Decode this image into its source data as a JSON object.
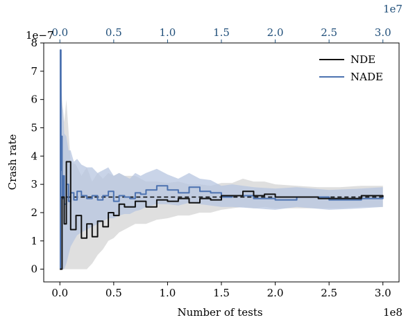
{
  "chart_data": {
    "type": "line",
    "title": "",
    "xlabel": "Number of tests",
    "ylabel": "Crash rate",
    "xlim": [
      -15000000.0,
      315000000.0
    ],
    "ylim": [
      -4.5e-08,
      8e-07
    ],
    "x_offset_label": "1e8",
    "y_offset_label": "1e−7",
    "top_offset_label": "1e7",
    "top_xlim": [
      -1500000.0,
      31500000.0
    ],
    "x_ticks": [
      0,
      50000000.0,
      100000000.0,
      150000000.0,
      200000000.0,
      250000000.0,
      300000000.0
    ],
    "x_tick_labels": [
      "0.0",
      "0.5",
      "1.0",
      "1.5",
      "2.0",
      "2.5",
      "3.0"
    ],
    "top_ticks": [
      0,
      5000000.0,
      10000000.0,
      15000000.0,
      20000000.0,
      25000000.0,
      30000000.0
    ],
    "top_tick_labels": [
      "0.0",
      "0.5",
      "1.0",
      "1.5",
      "2.0",
      "2.5",
      "3.0"
    ],
    "y_ticks": [
      0,
      1e-07,
      2e-07,
      3e-07,
      4e-07,
      5e-07,
      6e-07,
      7e-07,
      8e-07
    ],
    "y_tick_labels": [
      "0",
      "1",
      "2",
      "3",
      "4",
      "5",
      "6",
      "7",
      "8"
    ],
    "legend_position": "top-right",
    "reference_line": {
      "y": 2.55e-07,
      "style": "dashed",
      "color": "#000000"
    },
    "series": [
      {
        "name": "NDE",
        "color": "#111111",
        "band_color": "#d9d9d9",
        "x": [
          0,
          1000000.0,
          2000000.0,
          4000000.0,
          6000000.0,
          10000000.0,
          15000000.0,
          20000000.0,
          25000000.0,
          30000000.0,
          35000000.0,
          40000000.0,
          45000000.0,
          50000000.0,
          55000000.0,
          60000000.0,
          70000000.0,
          80000000.0,
          90000000.0,
          100000000.0,
          110000000.0,
          120000000.0,
          130000000.0,
          140000000.0,
          150000000.0,
          160000000.0,
          170000000.0,
          180000000.0,
          190000000.0,
          200000000.0,
          220000000.0,
          240000000.0,
          260000000.0,
          280000000.0,
          300000000.0
        ],
        "y": [
          0,
          0,
          2.55e-07,
          1.6e-07,
          3.8e-07,
          1.4e-07,
          1.9e-07,
          1.1e-07,
          1.6e-07,
          1.15e-07,
          1.7e-07,
          1.5e-07,
          2e-07,
          1.9e-07,
          2.3e-07,
          2.2e-07,
          2.4e-07,
          2.2e-07,
          2.45e-07,
          2.4e-07,
          2.5e-07,
          2.35e-07,
          2.5e-07,
          2.45e-07,
          2.6e-07,
          2.6e-07,
          2.75e-07,
          2.6e-07,
          2.65e-07,
          2.55e-07,
          2.55e-07,
          2.5e-07,
          2.5e-07,
          2.6e-07,
          2.55e-07
        ],
        "lower": [
          0,
          0,
          0,
          0,
          0,
          0,
          0,
          0,
          0,
          2e-08,
          5e-08,
          7e-08,
          1e-07,
          1.1e-07,
          1.3e-07,
          1.4e-07,
          1.6e-07,
          1.6e-07,
          1.75e-07,
          1.8e-07,
          1.9e-07,
          1.9e-07,
          2e-07,
          2e-07,
          2.1e-07,
          2.15e-07,
          2.2e-07,
          2.15e-07,
          2.2e-07,
          2.15e-07,
          2.15e-07,
          2.15e-07,
          2.15e-07,
          2.2e-07,
          2.2e-07
        ],
        "upper": [
          0,
          7e-07,
          6e-07,
          5.2e-07,
          6e-07,
          3.8e-07,
          3.7e-07,
          3.3e-07,
          3.6e-07,
          3.1e-07,
          3.4e-07,
          3.2e-07,
          3.4e-07,
          3.3e-07,
          3.4e-07,
          3.3e-07,
          3.3e-07,
          3.1e-07,
          3.1e-07,
          3.05e-07,
          3.1e-07,
          3e-07,
          3e-07,
          2.95e-07,
          3.05e-07,
          3.05e-07,
          3.2e-07,
          3.1e-07,
          3.1e-07,
          3e-07,
          2.95e-07,
          2.9e-07,
          2.9e-07,
          2.95e-07,
          2.95e-07
        ]
      },
      {
        "name": "NADE",
        "color": "#4c72b0",
        "band_color": "#b7c6e0",
        "x": [
          0,
          500000.0,
          1000000.0,
          1500000.0,
          2000000.0,
          3000000.0,
          4000000.0,
          6000000.0,
          8000000.0,
          10000000.0,
          13000000.0,
          16000000.0,
          20000000.0,
          25000000.0,
          30000000.0,
          35000000.0,
          40000000.0,
          45000000.0,
          50000000.0,
          55000000.0,
          60000000.0,
          65000000.0,
          70000000.0,
          75000000.0,
          80000000.0,
          90000000.0,
          100000000.0,
          110000000.0,
          120000000.0,
          130000000.0,
          140000000.0,
          150000000.0,
          160000000.0,
          180000000.0,
          200000000.0,
          220000000.0,
          250000000.0,
          280000000.0,
          300000000.0
        ],
        "y": [
          0,
          7.75e-07,
          3.5e-07,
          4.7e-07,
          2.5e-07,
          3.3e-07,
          2.3e-07,
          3e-07,
          2.4e-07,
          2.7e-07,
          2.45e-07,
          2.75e-07,
          2.6e-07,
          2.5e-07,
          2.6e-07,
          2.45e-07,
          2.6e-07,
          2.75e-07,
          2.4e-07,
          2.6e-07,
          2.55e-07,
          2.5e-07,
          2.7e-07,
          2.65e-07,
          2.8e-07,
          2.95e-07,
          2.8e-07,
          2.7e-07,
          2.9e-07,
          2.75e-07,
          2.7e-07,
          2.55e-07,
          2.6e-07,
          2.5e-07,
          2.45e-07,
          2.55e-07,
          2.45e-07,
          2.5e-07,
          2.55e-07
        ],
        "lower": [
          0,
          0,
          0,
          0,
          0,
          0,
          0,
          2e-08,
          5e-08,
          8e-08,
          1e-07,
          1.2e-07,
          1.3e-07,
          1.4e-07,
          1.5e-07,
          1.6e-07,
          1.7e-07,
          1.8e-07,
          1.8e-07,
          1.9e-07,
          1.95e-07,
          1.95e-07,
          2.05e-07,
          2.1e-07,
          2.2e-07,
          2.3e-07,
          2.3e-07,
          2.25e-07,
          2.35e-07,
          2.3e-07,
          2.25e-07,
          2.2e-07,
          2.2e-07,
          2.15e-07,
          2.1e-07,
          2.2e-07,
          2.1e-07,
          2.15e-07,
          2.2e-07
        ],
        "upper": [
          0,
          8e-07,
          7.5e-07,
          6.8e-07,
          5.8e-07,
          5.6e-07,
          4.8e-07,
          4.7e-07,
          4.2e-07,
          4.2e-07,
          3.8e-07,
          3.9e-07,
          3.7e-07,
          3.6e-07,
          3.6e-07,
          3.4e-07,
          3.5e-07,
          3.6e-07,
          3.3e-07,
          3.4e-07,
          3.3e-07,
          3.2e-07,
          3.4e-07,
          3.3e-07,
          3.4e-07,
          3.55e-07,
          3.35e-07,
          3.2e-07,
          3.4e-07,
          3.2e-07,
          3.15e-07,
          2.95e-07,
          3e-07,
          2.9e-07,
          2.85e-07,
          2.9e-07,
          2.8e-07,
          2.85e-07,
          2.9e-07
        ]
      }
    ]
  }
}
